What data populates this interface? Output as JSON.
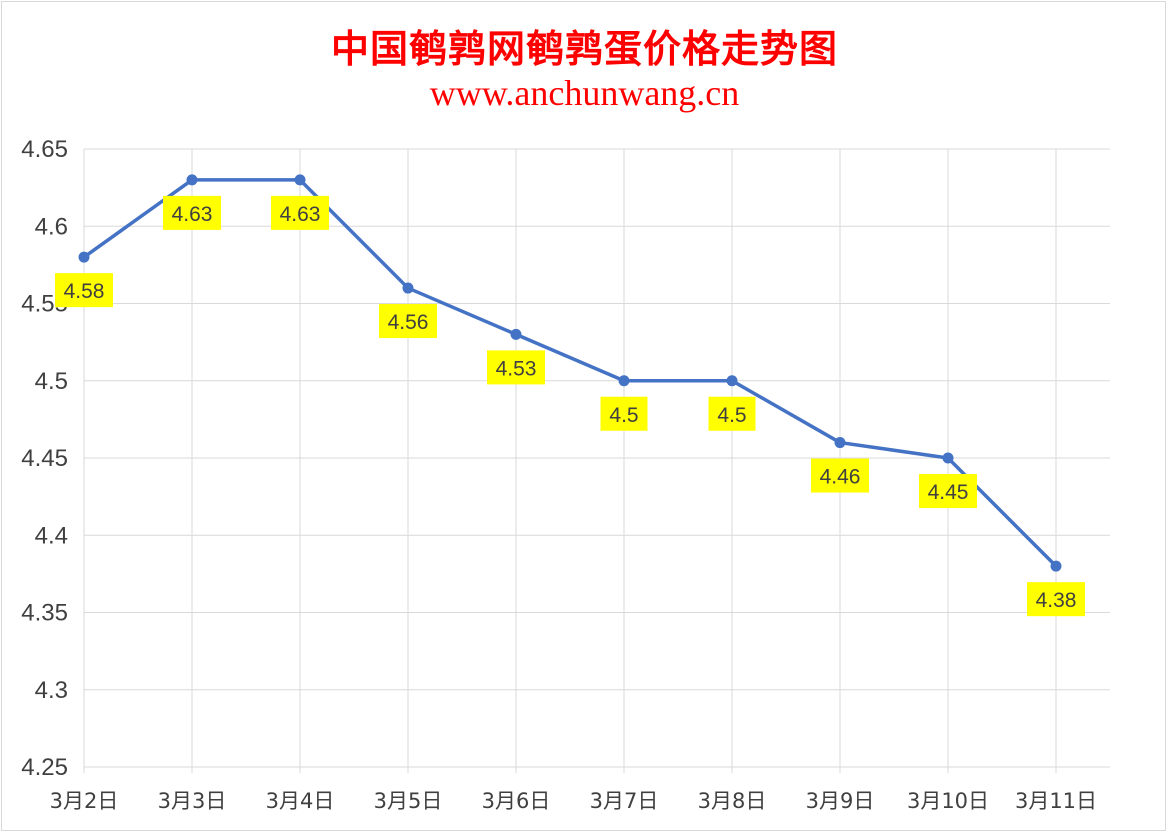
{
  "chart_data": {
    "type": "line",
    "title": "中国鹌鹑网鹌鹑蛋价格走势图",
    "subtitle": "www.anchunwang.cn",
    "categories": [
      "3月2日",
      "3月3日",
      "3月4日",
      "3月5日",
      "3月6日",
      "3月7日",
      "3月8日",
      "3月9日",
      "3月10日",
      "3月11日"
    ],
    "values": [
      4.58,
      4.63,
      4.63,
      4.56,
      4.53,
      4.5,
      4.5,
      4.46,
      4.45,
      4.38
    ],
    "ylim": [
      4.25,
      4.65
    ],
    "yticks": [
      "4.25",
      "4.3",
      "4.35",
      "4.4",
      "4.45",
      "4.5",
      "4.55",
      "4.6",
      "4.65"
    ],
    "grid": true,
    "legend": "none",
    "colors": {
      "line": "#4472c4",
      "label_bg": "#ffff00",
      "title": "#ff0000",
      "grid": "#d9d9d9"
    }
  }
}
